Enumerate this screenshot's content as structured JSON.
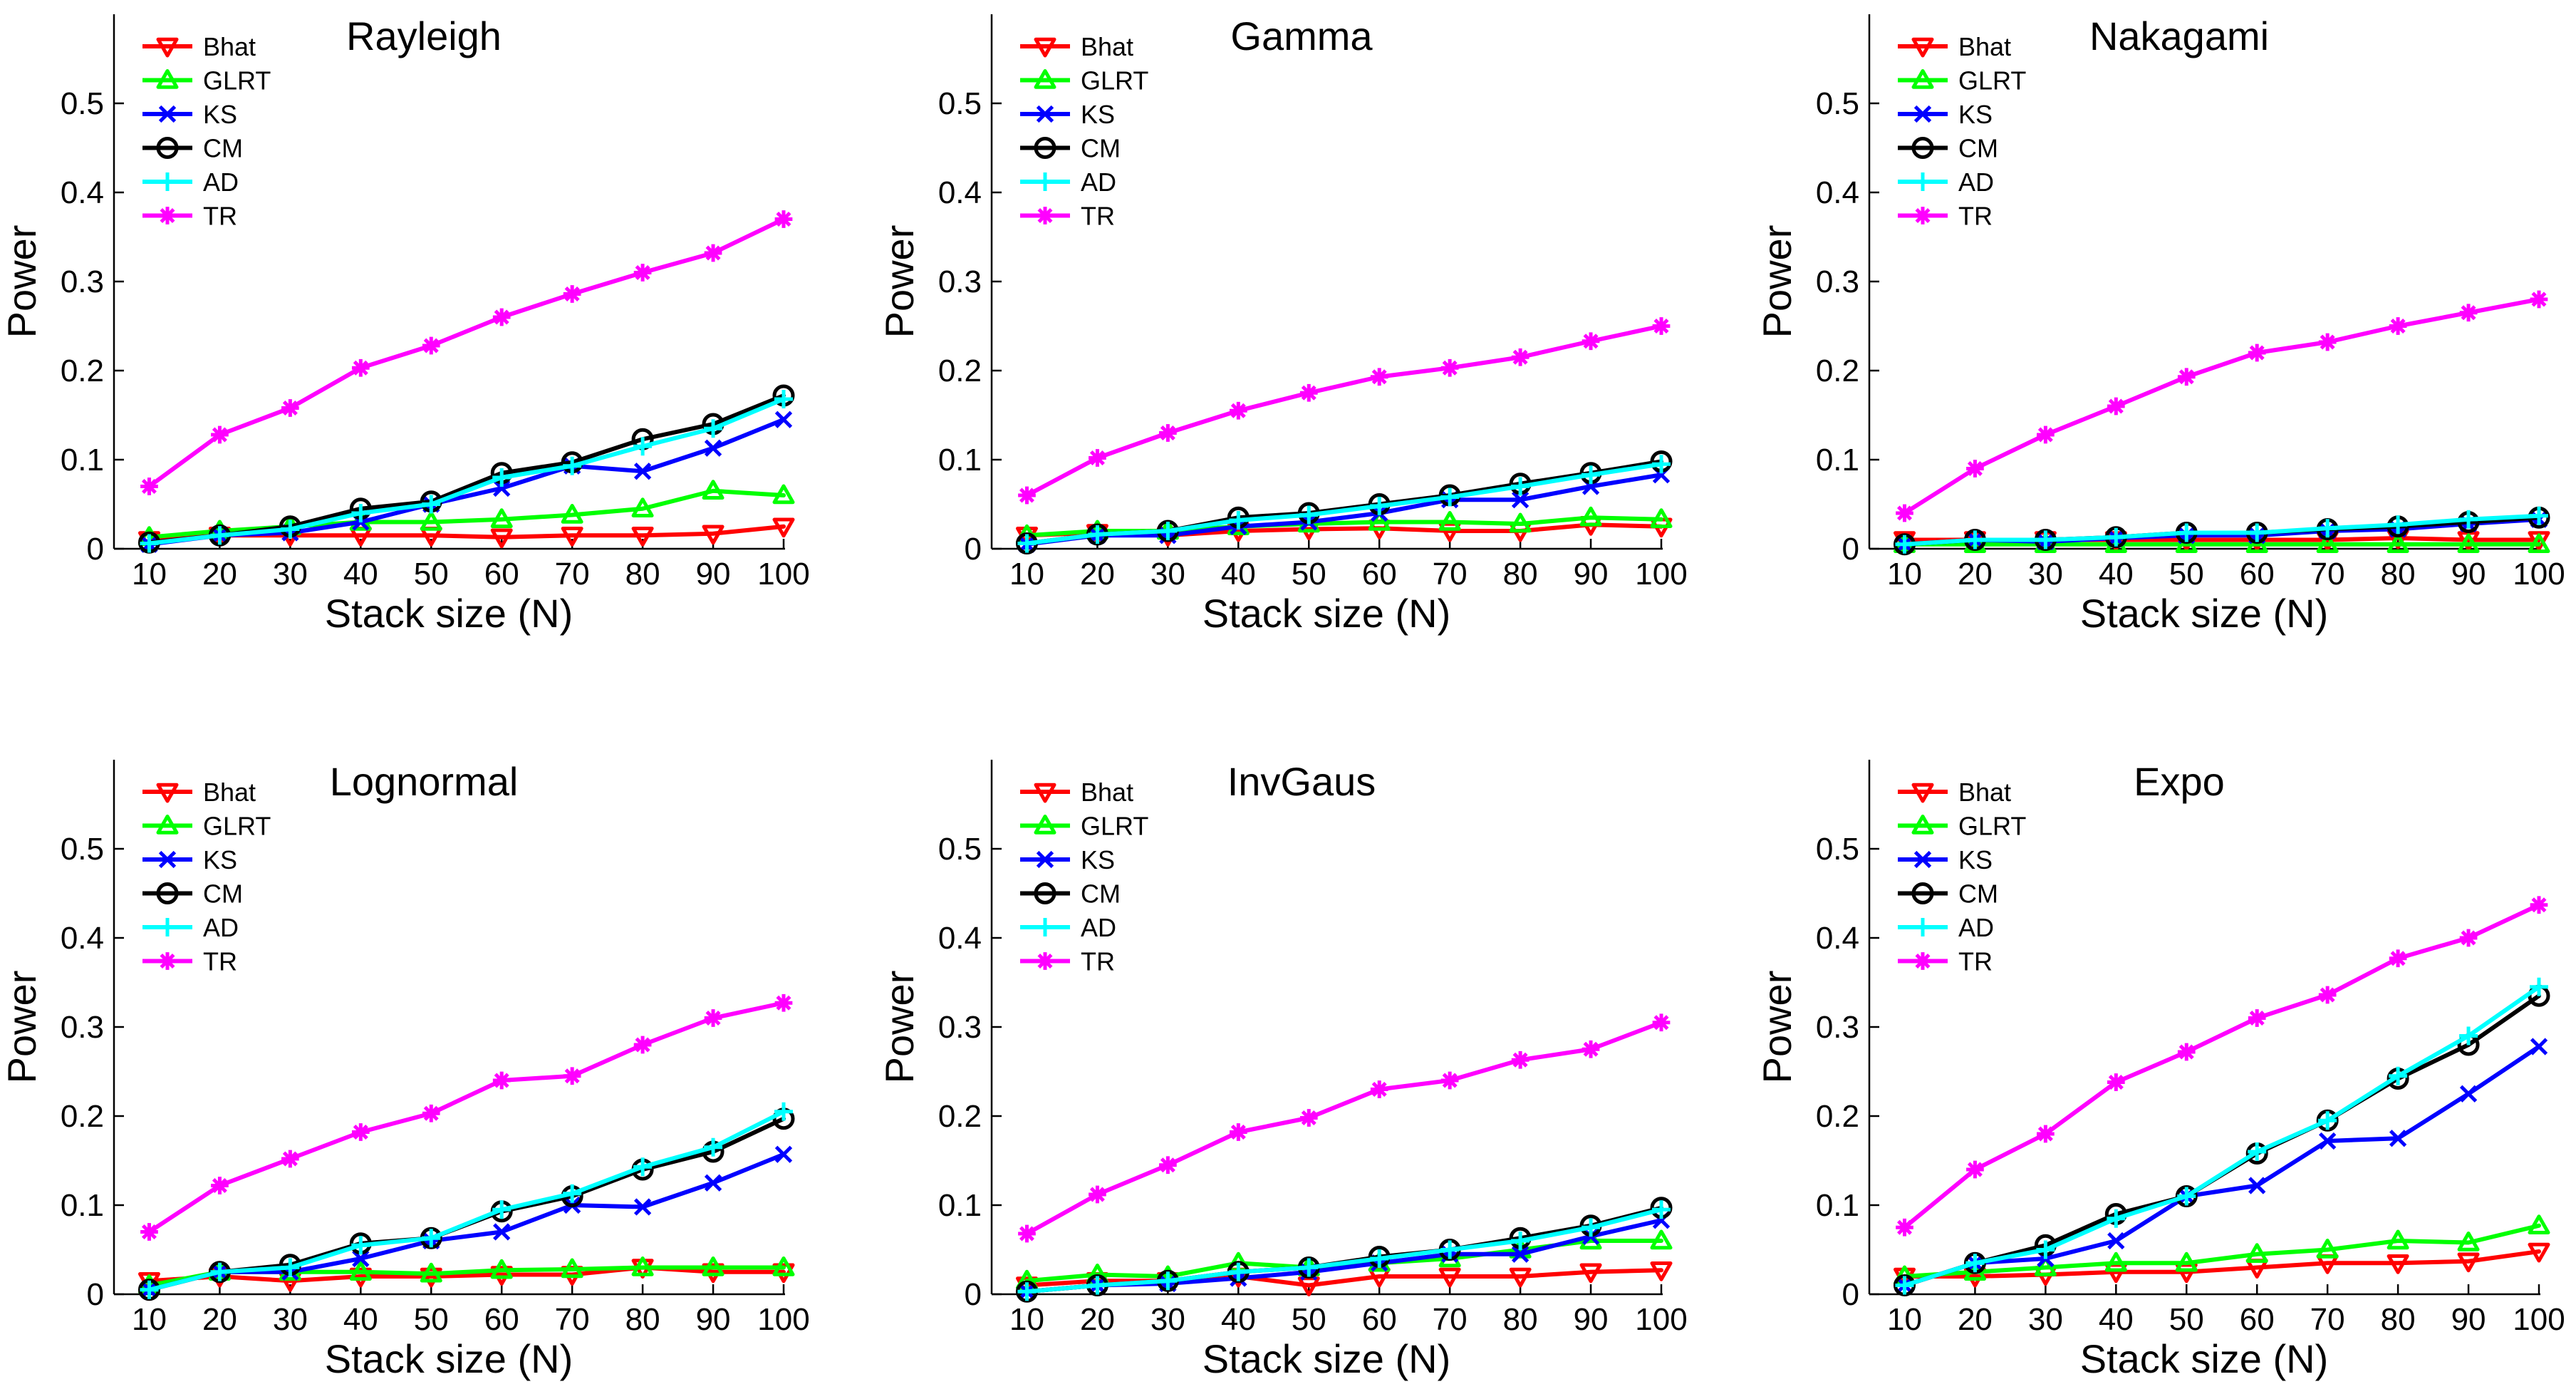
{
  "figure": {
    "ylabel": "Power",
    "xlabel": "Stack size (N)"
  },
  "chart_data": [
    {
      "type": "line",
      "title": "Rayleigh",
      "xlabel": "Stack size (N)",
      "ylabel": "Power",
      "x": [
        10,
        20,
        30,
        40,
        50,
        60,
        70,
        80,
        90,
        100
      ],
      "xlim": [
        5,
        100
      ],
      "ylim": [
        0,
        0.6
      ],
      "series": [
        {
          "name": "Bhat",
          "color": "#ff0000",
          "marker": "triangle-down",
          "values": [
            0.01,
            0.015,
            0.015,
            0.015,
            0.015,
            0.013,
            0.015,
            0.015,
            0.017,
            0.025
          ]
        },
        {
          "name": "GLRT",
          "color": "#00ff00",
          "marker": "triangle-up",
          "values": [
            0.013,
            0.02,
            0.025,
            0.03,
            0.03,
            0.033,
            0.038,
            0.045,
            0.065,
            0.06
          ]
        },
        {
          "name": "KS",
          "color": "#0000ff",
          "marker": "x",
          "values": [
            0.005,
            0.015,
            0.018,
            0.03,
            0.05,
            0.068,
            0.093,
            0.087,
            0.113,
            0.145
          ]
        },
        {
          "name": "CM",
          "color": "#000000",
          "marker": "circle",
          "values": [
            0.007,
            0.015,
            0.025,
            0.045,
            0.053,
            0.085,
            0.097,
            0.123,
            0.14,
            0.172
          ]
        },
        {
          "name": "AD",
          "color": "#00ffff",
          "marker": "plus",
          "values": [
            0.006,
            0.015,
            0.022,
            0.04,
            0.05,
            0.08,
            0.093,
            0.115,
            0.135,
            0.168
          ]
        },
        {
          "name": "TR",
          "color": "#ff00ff",
          "marker": "star",
          "values": [
            0.07,
            0.128,
            0.158,
            0.203,
            0.228,
            0.26,
            0.286,
            0.31,
            0.332,
            0.37
          ]
        }
      ]
    },
    {
      "type": "line",
      "title": "Gamma",
      "xlabel": "Stack size (N)",
      "ylabel": "Power",
      "x": [
        10,
        20,
        30,
        40,
        50,
        60,
        70,
        80,
        90,
        100
      ],
      "xlim": [
        5,
        100
      ],
      "ylim": [
        0,
        0.6
      ],
      "series": [
        {
          "name": "Bhat",
          "color": "#ff0000",
          "marker": "triangle-down",
          "values": [
            0.015,
            0.018,
            0.015,
            0.02,
            0.022,
            0.023,
            0.02,
            0.02,
            0.027,
            0.025
          ]
        },
        {
          "name": "GLRT",
          "color": "#00ff00",
          "marker": "triangle-up",
          "values": [
            0.015,
            0.02,
            0.02,
            0.025,
            0.028,
            0.03,
            0.03,
            0.028,
            0.035,
            0.033
          ]
        },
        {
          "name": "KS",
          "color": "#0000ff",
          "marker": "x",
          "values": [
            0.005,
            0.015,
            0.015,
            0.025,
            0.03,
            0.04,
            0.055,
            0.055,
            0.07,
            0.083
          ]
        },
        {
          "name": "CM",
          "color": "#000000",
          "marker": "circle",
          "values": [
            0.006,
            0.016,
            0.02,
            0.035,
            0.04,
            0.05,
            0.06,
            0.073,
            0.085,
            0.098
          ]
        },
        {
          "name": "AD",
          "color": "#00ffff",
          "marker": "plus",
          "values": [
            0.006,
            0.016,
            0.02,
            0.032,
            0.038,
            0.048,
            0.058,
            0.07,
            0.083,
            0.095
          ]
        },
        {
          "name": "TR",
          "color": "#ff00ff",
          "marker": "star",
          "values": [
            0.06,
            0.102,
            0.13,
            0.155,
            0.175,
            0.193,
            0.203,
            0.215,
            0.233,
            0.25
          ]
        }
      ]
    },
    {
      "type": "line",
      "title": "Nakagami",
      "xlabel": "Stack size (N)",
      "ylabel": "Power",
      "x": [
        10,
        20,
        30,
        40,
        50,
        60,
        70,
        80,
        90,
        100
      ],
      "xlim": [
        5,
        100
      ],
      "ylim": [
        0,
        0.6
      ],
      "series": [
        {
          "name": "Bhat",
          "color": "#ff0000",
          "marker": "triangle-down",
          "values": [
            0.01,
            0.01,
            0.01,
            0.01,
            0.01,
            0.01,
            0.01,
            0.012,
            0.01,
            0.01
          ]
        },
        {
          "name": "GLRT",
          "color": "#00ff00",
          "marker": "triangle-up",
          "values": [
            0.005,
            0.005,
            0.005,
            0.005,
            0.005,
            0.005,
            0.005,
            0.005,
            0.005,
            0.005
          ]
        },
        {
          "name": "KS",
          "color": "#0000ff",
          "marker": "x",
          "values": [
            0.005,
            0.01,
            0.008,
            0.012,
            0.015,
            0.015,
            0.02,
            0.022,
            0.028,
            0.033
          ]
        },
        {
          "name": "CM",
          "color": "#000000",
          "marker": "circle",
          "values": [
            0.005,
            0.01,
            0.01,
            0.013,
            0.018,
            0.018,
            0.022,
            0.025,
            0.03,
            0.035
          ]
        },
        {
          "name": "AD",
          "color": "#00ffff",
          "marker": "plus",
          "values": [
            0.005,
            0.01,
            0.01,
            0.013,
            0.018,
            0.018,
            0.023,
            0.027,
            0.033,
            0.037
          ]
        },
        {
          "name": "TR",
          "color": "#ff00ff",
          "marker": "star",
          "values": [
            0.04,
            0.09,
            0.128,
            0.16,
            0.193,
            0.22,
            0.232,
            0.25,
            0.265,
            0.28
          ]
        }
      ]
    },
    {
      "type": "line",
      "title": "Lognormal",
      "xlabel": "Stack size (N)",
      "ylabel": "Power",
      "x": [
        10,
        20,
        30,
        40,
        50,
        60,
        70,
        80,
        90,
        100
      ],
      "xlim": [
        5,
        100
      ],
      "ylim": [
        0,
        0.6
      ],
      "series": [
        {
          "name": "Bhat",
          "color": "#ff0000",
          "marker": "triangle-down",
          "values": [
            0.015,
            0.02,
            0.015,
            0.02,
            0.02,
            0.022,
            0.022,
            0.03,
            0.025,
            0.025
          ]
        },
        {
          "name": "GLRT",
          "color": "#00ff00",
          "marker": "triangle-up",
          "values": [
            0.01,
            0.025,
            0.025,
            0.025,
            0.023,
            0.027,
            0.028,
            0.03,
            0.03,
            0.03
          ]
        },
        {
          "name": "KS",
          "color": "#0000ff",
          "marker": "x",
          "values": [
            0.005,
            0.025,
            0.025,
            0.04,
            0.06,
            0.07,
            0.1,
            0.098,
            0.125,
            0.157
          ]
        },
        {
          "name": "CM",
          "color": "#000000",
          "marker": "circle",
          "values": [
            0.005,
            0.025,
            0.033,
            0.057,
            0.063,
            0.093,
            0.11,
            0.14,
            0.16,
            0.197
          ]
        },
        {
          "name": "AD",
          "color": "#00ffff",
          "marker": "plus",
          "values": [
            0.005,
            0.025,
            0.03,
            0.055,
            0.063,
            0.095,
            0.113,
            0.143,
            0.165,
            0.205
          ]
        },
        {
          "name": "TR",
          "color": "#ff00ff",
          "marker": "star",
          "values": [
            0.07,
            0.122,
            0.152,
            0.182,
            0.203,
            0.24,
            0.245,
            0.28,
            0.31,
            0.327
          ]
        }
      ]
    },
    {
      "type": "line",
      "title": "InvGaus",
      "xlabel": "Stack size (N)",
      "ylabel": "Power",
      "x": [
        10,
        20,
        30,
        40,
        50,
        60,
        70,
        80,
        90,
        100
      ],
      "xlim": [
        5,
        100
      ],
      "ylim": [
        0,
        0.6
      ],
      "series": [
        {
          "name": "Bhat",
          "color": "#ff0000",
          "marker": "triangle-down",
          "values": [
            0.01,
            0.015,
            0.015,
            0.02,
            0.01,
            0.02,
            0.02,
            0.02,
            0.025,
            0.027
          ]
        },
        {
          "name": "GLRT",
          "color": "#00ff00",
          "marker": "triangle-up",
          "values": [
            0.015,
            0.022,
            0.02,
            0.035,
            0.03,
            0.035,
            0.04,
            0.05,
            0.06,
            0.06
          ]
        },
        {
          "name": "KS",
          "color": "#0000ff",
          "marker": "x",
          "values": [
            0.003,
            0.01,
            0.012,
            0.018,
            0.025,
            0.035,
            0.045,
            0.045,
            0.065,
            0.083
          ]
        },
        {
          "name": "CM",
          "color": "#000000",
          "marker": "circle",
          "values": [
            0.003,
            0.01,
            0.015,
            0.025,
            0.03,
            0.042,
            0.05,
            0.063,
            0.077,
            0.097
          ]
        },
        {
          "name": "AD",
          "color": "#00ffff",
          "marker": "plus",
          "values": [
            0.003,
            0.01,
            0.015,
            0.025,
            0.03,
            0.04,
            0.05,
            0.06,
            0.075,
            0.095
          ]
        },
        {
          "name": "TR",
          "color": "#ff00ff",
          "marker": "star",
          "values": [
            0.068,
            0.112,
            0.145,
            0.182,
            0.198,
            0.23,
            0.24,
            0.263,
            0.275,
            0.305
          ]
        }
      ]
    },
    {
      "type": "line",
      "title": "Expo",
      "xlabel": "Stack size (N)",
      "ylabel": "Power",
      "x": [
        10,
        20,
        30,
        40,
        50,
        60,
        70,
        80,
        90,
        100
      ],
      "xlim": [
        5,
        100
      ],
      "ylim": [
        0,
        0.6
      ],
      "series": [
        {
          "name": "Bhat",
          "color": "#ff0000",
          "marker": "triangle-down",
          "values": [
            0.02,
            0.02,
            0.022,
            0.025,
            0.025,
            0.03,
            0.035,
            0.035,
            0.037,
            0.048
          ]
        },
        {
          "name": "GLRT",
          "color": "#00ff00",
          "marker": "triangle-up",
          "values": [
            0.02,
            0.025,
            0.03,
            0.035,
            0.035,
            0.045,
            0.05,
            0.06,
            0.058,
            0.077
          ]
        },
        {
          "name": "KS",
          "color": "#0000ff",
          "marker": "x",
          "values": [
            0.01,
            0.035,
            0.04,
            0.06,
            0.11,
            0.122,
            0.172,
            0.175,
            0.225,
            0.278
          ]
        },
        {
          "name": "CM",
          "color": "#000000",
          "marker": "circle",
          "values": [
            0.01,
            0.035,
            0.055,
            0.09,
            0.11,
            0.158,
            0.195,
            0.242,
            0.28,
            0.335
          ]
        },
        {
          "name": "AD",
          "color": "#00ffff",
          "marker": "plus",
          "values": [
            0.01,
            0.035,
            0.05,
            0.085,
            0.11,
            0.16,
            0.195,
            0.245,
            0.29,
            0.345
          ]
        },
        {
          "name": "TR",
          "color": "#ff00ff",
          "marker": "star",
          "values": [
            0.075,
            0.14,
            0.18,
            0.238,
            0.272,
            0.31,
            0.336,
            0.377,
            0.4,
            0.437
          ]
        }
      ]
    }
  ]
}
